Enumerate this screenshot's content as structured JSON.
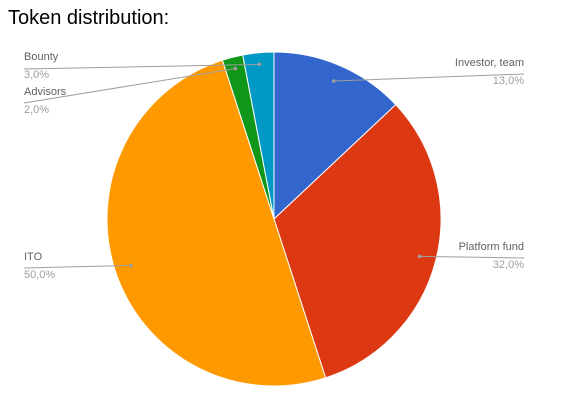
{
  "chart_data": {
    "type": "pie",
    "title": "Token distribution:",
    "categories": [
      "Investor, team",
      "Platform fund",
      "ITO",
      "Advisors",
      "Bounty"
    ],
    "values": [
      13.0,
      32.0,
      50.0,
      2.0,
      3.0
    ],
    "value_labels": [
      "13,0%",
      "32,0%",
      "50,0%",
      "2,0%",
      "3,0%"
    ],
    "colors": [
      "#3366cc",
      "#dc3912",
      "#ff9900",
      "#109618",
      "#0099c6"
    ]
  }
}
